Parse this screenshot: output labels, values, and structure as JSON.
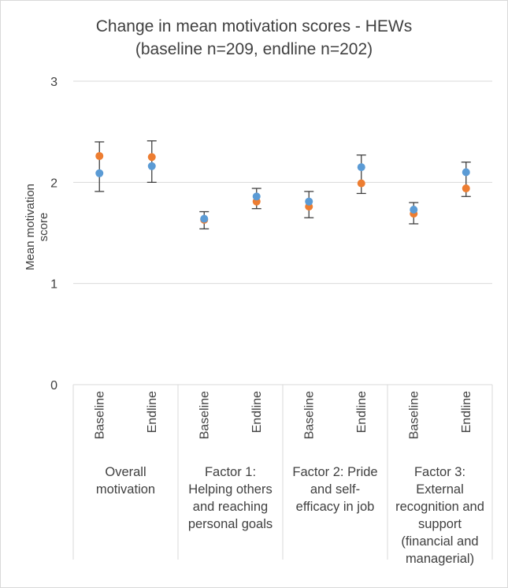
{
  "chart_data": {
    "type": "scatter",
    "title": "Change in mean motivation scores - HEWs",
    "subtitle": "(baseline n=209, endline n=202)",
    "ylabel": "Mean motivation score",
    "ylim": [
      0,
      3
    ],
    "yticks": [
      "0",
      "1",
      "2",
      "3"
    ],
    "grid": true,
    "groups": [
      "Overall motivation",
      "Factor 1: Helping others and reaching personal goals",
      "Factor 2: Pride and self-efficacy in job",
      "Factor 3: External recognition and support (financial and managerial)"
    ],
    "subcategories": [
      "Baseline",
      "Endline"
    ],
    "series": [
      {
        "color": "#ED7D31",
        "values": [
          2.26,
          2.25,
          1.63,
          1.81,
          1.76,
          1.99,
          1.69,
          1.94
        ]
      },
      {
        "color": "#5B9BD5",
        "values": [
          2.09,
          2.16,
          1.64,
          1.86,
          1.81,
          2.15,
          1.73,
          2.1
        ]
      }
    ],
    "error_bars": [
      {
        "center": 2.09,
        "low": 1.91,
        "high": 2.4
      },
      {
        "center": 2.16,
        "low": 2.0,
        "high": 2.41
      },
      {
        "center": 1.63,
        "low": 1.54,
        "high": 1.71
      },
      {
        "center": 1.84,
        "low": 1.74,
        "high": 1.94
      },
      {
        "center": 1.78,
        "low": 1.65,
        "high": 1.91
      },
      {
        "center": 2.06,
        "low": 1.89,
        "high": 2.27
      },
      {
        "center": 1.7,
        "low": 1.59,
        "high": 1.8
      },
      {
        "center": 2.02,
        "low": 1.86,
        "high": 2.2
      }
    ],
    "colors": {
      "grid": "#D9D9D9",
      "errorbar": "#404040",
      "text": "#404040"
    }
  }
}
